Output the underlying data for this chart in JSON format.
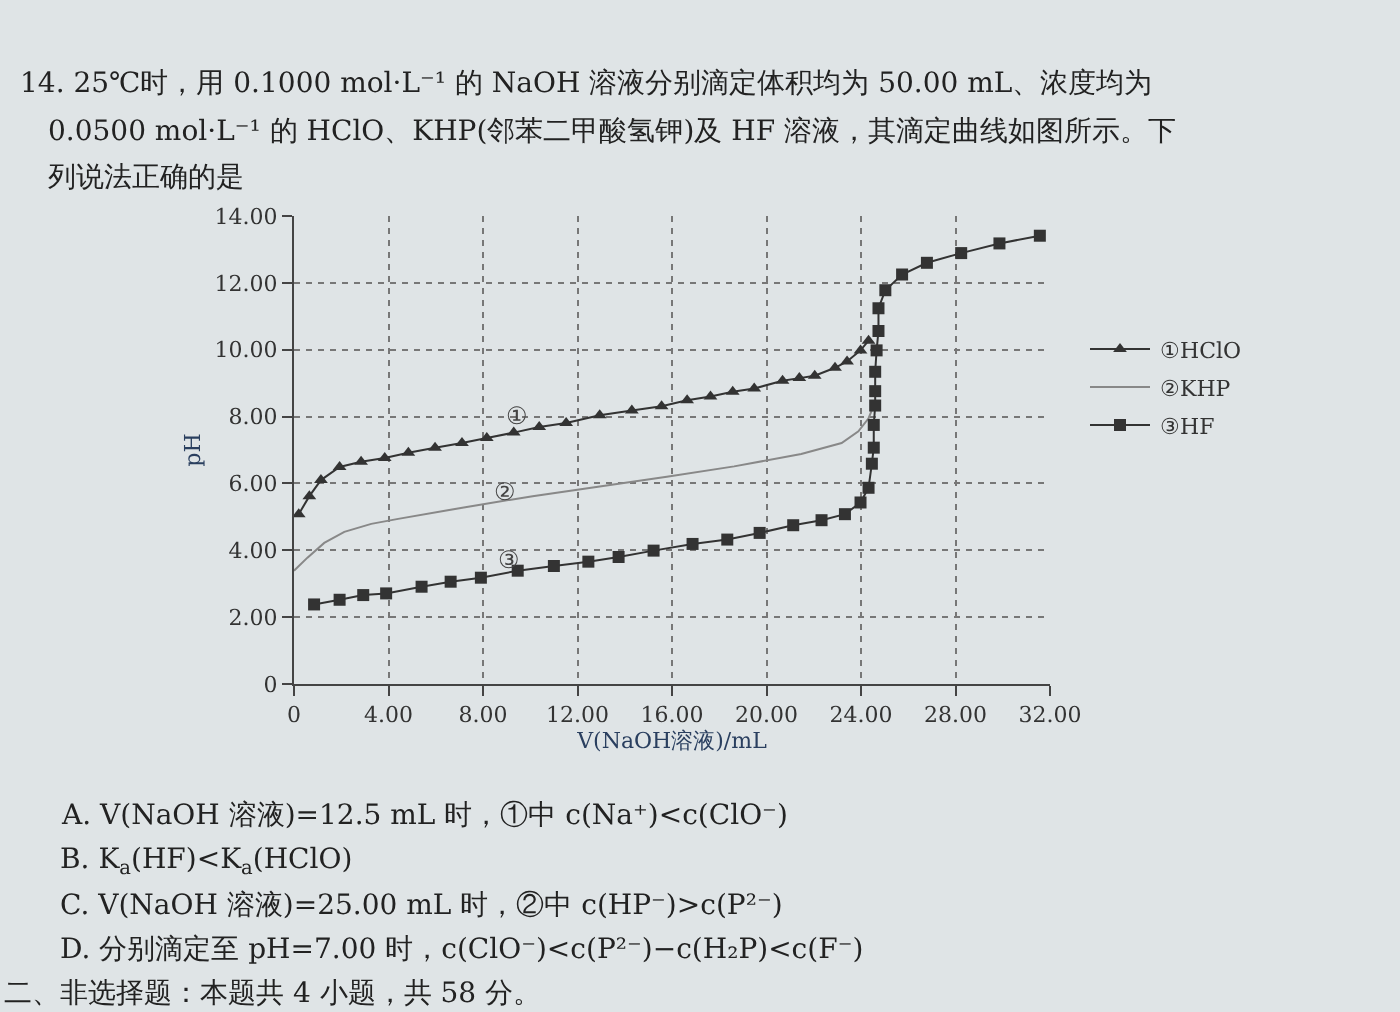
{
  "chart_data": {
    "type": "line",
    "xlabel": "V(NaOH溶液)/mL",
    "ylabel": "pH",
    "xlim": [
      0,
      32
    ],
    "ylim": [
      0,
      14
    ],
    "xticks": [
      {
        "value": 0,
        "label": "0"
      },
      {
        "value": 4,
        "label": "4.00"
      },
      {
        "value": 8,
        "label": "8.00"
      },
      {
        "value": 12,
        "label": "12.00"
      },
      {
        "value": 16,
        "label": "16.00"
      },
      {
        "value": 20,
        "label": "20.00"
      },
      {
        "value": 24,
        "label": "24.00"
      },
      {
        "value": 28,
        "label": "28.00"
      },
      {
        "value": 32,
        "label": "32.00"
      }
    ],
    "yticks": [
      {
        "value": 0,
        "label": "0"
      },
      {
        "value": 2,
        "label": "2.00"
      },
      {
        "value": 4,
        "label": "4.00"
      },
      {
        "value": 6,
        "label": "6.00"
      },
      {
        "value": 8,
        "label": "8.00"
      },
      {
        "value": 10,
        "label": "10.00"
      },
      {
        "value": 12,
        "label": "12.00"
      },
      {
        "value": 14,
        "label": "14.00"
      }
    ],
    "grid": true,
    "legend": "right",
    "series": [
      {
        "name": "①HClO",
        "color": "#333333",
        "marker": "triangle",
        "x": [
          0.2,
          0.65,
          1.14,
          1.93,
          2.84,
          3.84,
          4.84,
          5.97,
          7.11,
          8.16,
          9.3,
          10.38,
          11.52,
          12.94,
          14.3,
          15.56,
          16.64,
          17.63,
          18.57,
          19.48,
          20.68,
          21.39,
          22.04,
          22.9,
          23.41,
          23.98,
          24.32
        ],
        "values": [
          5.08,
          5.62,
          6.1,
          6.49,
          6.65,
          6.76,
          6.92,
          7.07,
          7.21,
          7.36,
          7.52,
          7.69,
          7.81,
          8.04,
          8.18,
          8.31,
          8.49,
          8.6,
          8.74,
          8.84,
          9.07,
          9.15,
          9.22,
          9.46,
          9.65,
          9.98,
          10.27
        ]
      },
      {
        "name": "②KHP",
        "color": "#888888",
        "marker": "none",
        "x": [
          0,
          0.57,
          1.28,
          2.13,
          3.27,
          4.41,
          7.25,
          10.1,
          12.94,
          15.78,
          18.63,
          21.47,
          23.18,
          23.89,
          24.32,
          24.54
        ],
        "values": [
          3.39,
          3.78,
          4.22,
          4.55,
          4.79,
          4.94,
          5.29,
          5.62,
          5.91,
          6.2,
          6.51,
          6.88,
          7.21,
          7.56,
          7.95,
          8.33
        ]
      },
      {
        "name": "③HF",
        "color": "#333333",
        "marker": "square",
        "x": [
          0.85,
          1.93,
          2.93,
          3.9,
          5.4,
          6.63,
          7.91,
          9.47,
          11.0,
          12.46,
          13.74,
          15.22,
          16.87,
          18.34,
          19.71,
          21.13,
          22.33,
          23.32,
          23.98,
          24.32,
          24.46,
          24.54,
          24.54,
          24.6,
          24.6,
          24.6,
          24.66,
          24.74,
          24.74,
          25.03,
          25.74,
          26.79,
          28.24,
          29.86,
          31.57
        ],
        "values": [
          2.38,
          2.52,
          2.66,
          2.71,
          2.91,
          3.06,
          3.18,
          3.39,
          3.53,
          3.66,
          3.8,
          3.99,
          4.19,
          4.32,
          4.52,
          4.75,
          4.9,
          5.08,
          5.43,
          5.87,
          6.59,
          7.07,
          7.75,
          8.33,
          8.76,
          9.34,
          9.98,
          10.56,
          11.24,
          11.78,
          12.25,
          12.6,
          12.89,
          13.18,
          13.41
        ]
      }
    ],
    "annotations": [
      "14. 25℃时，用 0.1000 mol·L⁻¹ 的 NaOH 溶液分别滴定体积均为 50.00 mL、浓度均为",
      "0.0500 mol·L⁻¹ 的 HClO、KHP(邻苯二甲酸氢钾)及 HF 溶液，其滴定曲线如图所示。下",
      "列说法正确的是",
      "A. V(NaOH 溶液)=12.5 mL 时，①中 c(Na⁺)<c(ClO⁻)",
      "B. K$_{a}$(HF)<K$_{a}$(HClO)",
      "C. V(NaOH 溶液)=25.00 mL 时，②中 c(HP⁻)>c(P²⁻)",
      "D. 分别滴定至 pH=7.00 时，c(ClO⁻)<c(P²⁻)−c(H₂P)<c(F⁻)",
      "二、非选择题：本题共 4 小题，共 58 分。",
      "①",
      "②",
      "③"
    ]
  }
}
